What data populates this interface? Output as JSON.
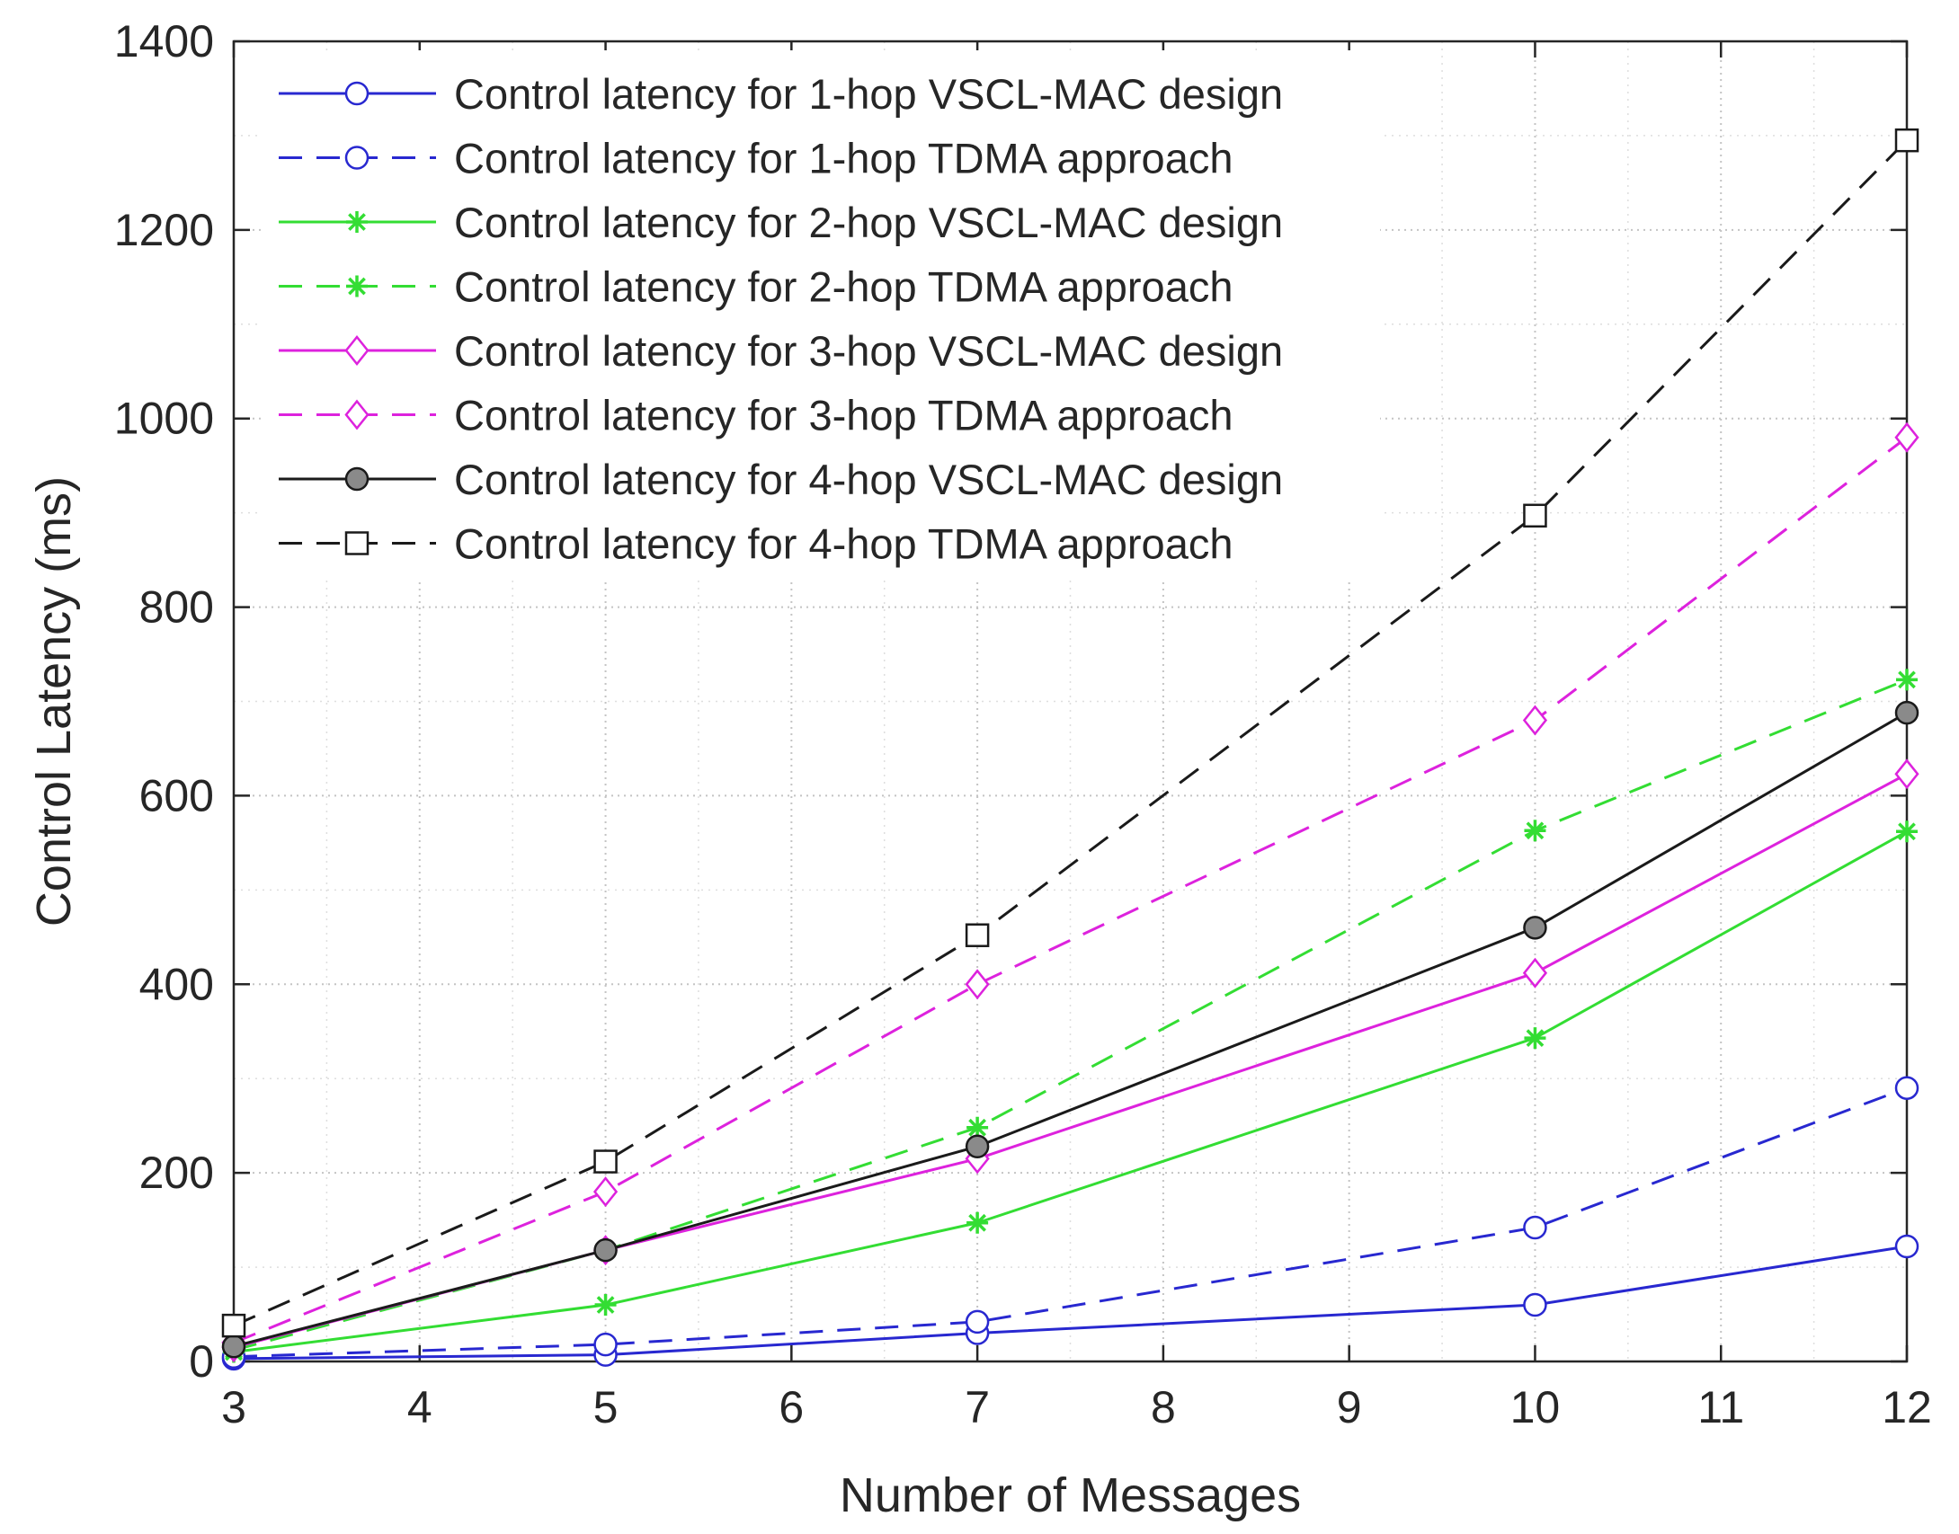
{
  "chart_data": {
    "type": "line",
    "title": "",
    "xlabel": "Number of Messages",
    "ylabel": "Control Latency (ms)",
    "xlim": [
      3,
      12
    ],
    "ylim": [
      0,
      1400
    ],
    "xticks": [
      3,
      4,
      5,
      6,
      7,
      8,
      9,
      10,
      11,
      12
    ],
    "yticks": [
      0,
      200,
      400,
      600,
      800,
      1000,
      1200,
      1400
    ],
    "grid": "major-and-minor-dotted",
    "legend_position": "top-left",
    "x": [
      3,
      5,
      7,
      10,
      12
    ],
    "series": [
      {
        "name": "Control latency for 1-hop VSCL-MAC design",
        "values": [
          3,
          7,
          30,
          60,
          122
        ],
        "color": "#2828d0",
        "dash": "solid",
        "marker": "circle"
      },
      {
        "name": "Control latency for 1-hop TDMA approach",
        "values": [
          5,
          18,
          42,
          142,
          290
        ],
        "color": "#2828d0",
        "dash": "dashed",
        "marker": "circle"
      },
      {
        "name": "Control latency for 2-hop VSCL-MAC design",
        "values": [
          10,
          60,
          147,
          343,
          562
        ],
        "color": "#33dd33",
        "dash": "solid",
        "marker": "asterisk"
      },
      {
        "name": "Control latency for 2-hop TDMA approach",
        "values": [
          12,
          118,
          248,
          563,
          723
        ],
        "color": "#33dd33",
        "dash": "dashed",
        "marker": "asterisk"
      },
      {
        "name": "Control latency for 3-hop VSCL-MAC design",
        "values": [
          15,
          118,
          215,
          412,
          623
        ],
        "color": "#dd22dd",
        "dash": "solid",
        "marker": "diamond"
      },
      {
        "name": "Control latency for 3-hop TDMA approach",
        "values": [
          20,
          180,
          400,
          680,
          980
        ],
        "color": "#dd22dd",
        "dash": "dashed",
        "marker": "diamond"
      },
      {
        "name": "Control latency for 4-hop VSCL-MAC design",
        "values": [
          16,
          118,
          228,
          460,
          688
        ],
        "color": "#1a1a1a",
        "dash": "solid",
        "marker": "circle-filled"
      },
      {
        "name": "Control latency for 4-hop TDMA approach",
        "values": [
          38,
          212,
          452,
          897,
          1295
        ],
        "color": "#1a1a1a",
        "dash": "dashed",
        "marker": "square"
      }
    ]
  }
}
